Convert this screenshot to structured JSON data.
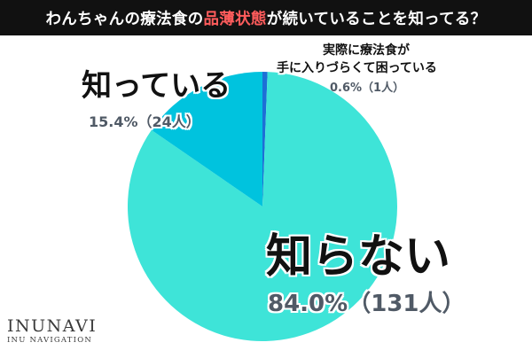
{
  "title": {
    "before": "わんちゃんの療法食の",
    "highlight": "品薄状態",
    "after": "が続いていることを知ってる？"
  },
  "colors": {
    "title_bg": "#111111",
    "title_text": "#ffffff",
    "title_highlight": "#ff5c5c",
    "slice_1": "#3ee4d8",
    "slice_2": "#00c3de",
    "slice_3": "#1d6fd6",
    "label_pct": "#505a66"
  },
  "chart_data": {
    "type": "pie",
    "title": "わんちゃんの療法食の品薄状態が続いていることを知ってる？",
    "slices": [
      {
        "label": "知らない",
        "percent": 84.0,
        "count": 131,
        "value_label": "84.0%（131人）"
      },
      {
        "label": "知っている",
        "percent": 15.4,
        "count": 24,
        "value_label": "15.4%（24人）"
      },
      {
        "label_line1": "実際に療法食が",
        "label_line2": "手に入りづらくて困っている",
        "percent": 0.6,
        "count": 1,
        "value_label": "0.6%（1人）"
      }
    ]
  },
  "logo": {
    "main": "INUNAVI",
    "sub": "INU NAVIGATION"
  }
}
